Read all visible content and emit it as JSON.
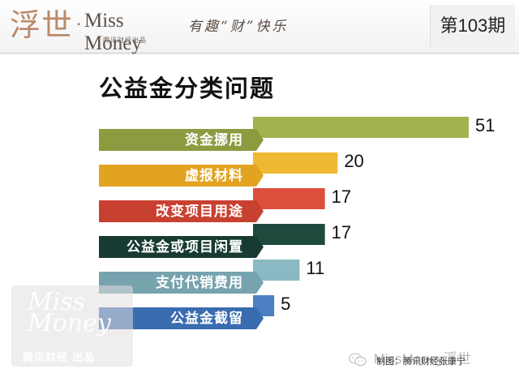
{
  "header": {
    "logo_glyph": "浮世",
    "logo_dot": "·",
    "logo_name": "Miss Money",
    "logo_sub": "腾讯财经出品",
    "slogan": "有趣“财”快乐",
    "issue": "第103期"
  },
  "chart_data": {
    "type": "bar",
    "orientation": "horizontal",
    "title": "公益金分类问题",
    "categories": [
      "资金挪用",
      "虚报材料",
      "改变项目用途",
      "公益金或项目闲置",
      "支付代销费用",
      "公益金截留"
    ],
    "values": [
      51,
      20,
      17,
      17,
      11,
      5
    ],
    "bar_colors": [
      "#a3b24e",
      "#f0b733",
      "#dc4f3c",
      "#1e4a3e",
      "#8ab9c3",
      "#4a7fc2"
    ],
    "label_colors": [
      "#8d9b40",
      "#e2a321",
      "#c84030",
      "#173b32",
      "#76a3ae",
      "#3a6cb0"
    ],
    "legend": false,
    "grid": false
  },
  "footer": {
    "credit": "制图：腾讯财经张康宁",
    "wechat": "MissMoney浮世"
  },
  "watermark": {
    "logo": "Miss Money",
    "text": "腾讯财经 出品"
  }
}
